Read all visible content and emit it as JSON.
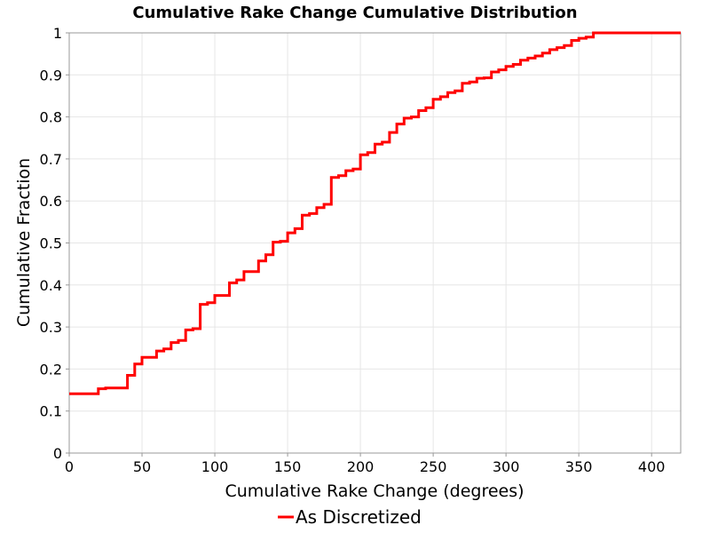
{
  "chart_data": {
    "type": "line",
    "title": "Cumulative Rake Change Cumulative Distribution",
    "xlabel": "Cumulative Rake Change (degrees)",
    "ylabel": "Cumulative Fraction",
    "xlim": [
      0,
      420
    ],
    "ylim": [
      0,
      1
    ],
    "x_ticks": [
      0,
      50,
      100,
      150,
      200,
      250,
      300,
      350,
      400
    ],
    "y_ticks": [
      0,
      0.1,
      0.2,
      0.3,
      0.4,
      0.5,
      0.6,
      0.7,
      0.8,
      0.9,
      1
    ],
    "x_tick_labels": [
      "0",
      "50",
      "100",
      "150",
      "200",
      "250",
      "300",
      "350",
      "400"
    ],
    "y_tick_labels": [
      "0",
      "0.1",
      "0.2",
      "0.3",
      "0.4",
      "0.5",
      "0.6",
      "0.7",
      "0.8",
      "0.9",
      "1"
    ],
    "grid": true,
    "legend_position": "bottom-center",
    "series": [
      {
        "name": "As Discretized",
        "color": "#ff0000",
        "x": [
          0,
          20,
          25,
          40,
          45,
          50,
          60,
          65,
          70,
          75,
          80,
          85,
          90,
          95,
          100,
          110,
          115,
          120,
          130,
          135,
          140,
          145,
          150,
          155,
          160,
          165,
          170,
          175,
          180,
          185,
          190,
          195,
          200,
          205,
          210,
          215,
          220,
          225,
          230,
          235,
          240,
          245,
          250,
          255,
          260,
          265,
          270,
          275,
          280,
          285,
          290,
          295,
          300,
          305,
          310,
          315,
          320,
          325,
          330,
          335,
          340,
          345,
          350,
          355,
          360,
          420
        ],
        "y": [
          0.141,
          0.153,
          0.155,
          0.185,
          0.212,
          0.228,
          0.243,
          0.248,
          0.263,
          0.268,
          0.293,
          0.296,
          0.354,
          0.358,
          0.375,
          0.405,
          0.412,
          0.432,
          0.457,
          0.472,
          0.502,
          0.504,
          0.524,
          0.534,
          0.566,
          0.57,
          0.584,
          0.592,
          0.656,
          0.66,
          0.672,
          0.676,
          0.71,
          0.715,
          0.735,
          0.74,
          0.763,
          0.783,
          0.797,
          0.8,
          0.815,
          0.822,
          0.842,
          0.848,
          0.858,
          0.862,
          0.88,
          0.883,
          0.892,
          0.893,
          0.907,
          0.912,
          0.92,
          0.925,
          0.935,
          0.94,
          0.945,
          0.952,
          0.96,
          0.965,
          0.97,
          0.982,
          0.987,
          0.99,
          1.0,
          1.0
        ]
      }
    ]
  }
}
